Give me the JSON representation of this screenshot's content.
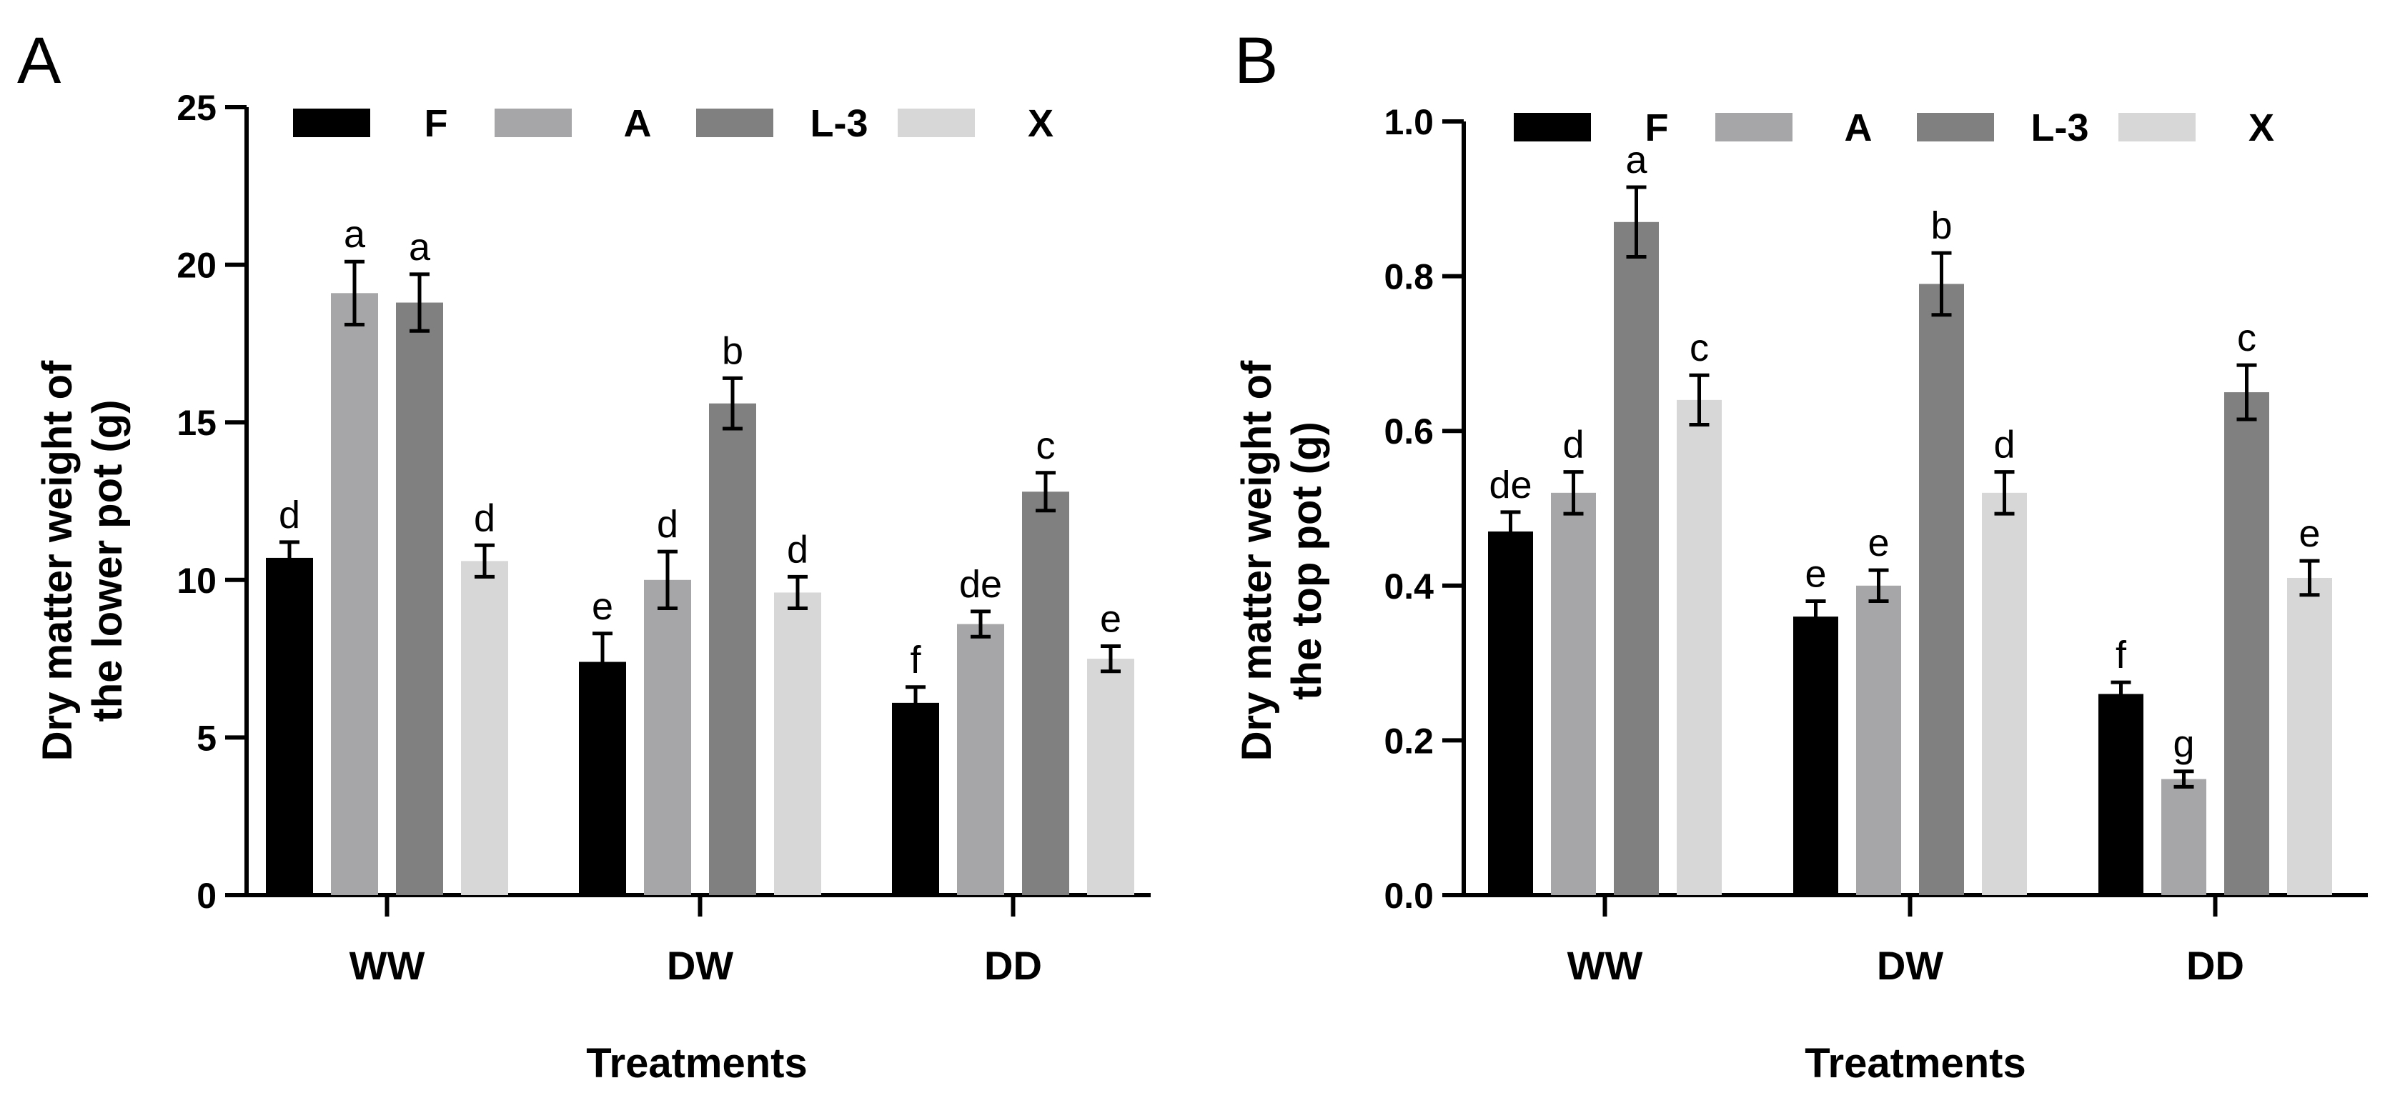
{
  "figure": {
    "description_domain": "Chart"
  },
  "colors": {
    "F": "#000000",
    "A": "#a6a6a8",
    "L-3": "#808080",
    "X": "#d7d7d7",
    "axis": "#000000"
  },
  "chart_data": [
    {
      "panel": "A",
      "type": "bar",
      "title": "",
      "xlabel": "Treatments",
      "ylabel_lines": [
        "Dry matter weight of",
        "the lower pot (g)"
      ],
      "categories": [
        "WW",
        "DW",
        "DD"
      ],
      "ylim": [
        0,
        25
      ],
      "yticks": [
        0,
        5,
        10,
        15,
        20,
        25
      ],
      "ytick_labels": [
        "0",
        "5",
        "10",
        "15",
        "20",
        "25"
      ],
      "legend": [
        "F",
        "A",
        "L-3",
        "X"
      ],
      "legend_position": "top",
      "series": [
        {
          "name": "F",
          "values": [
            10.7,
            7.4,
            6.1
          ],
          "errors": [
            0.5,
            0.9,
            0.5
          ],
          "labels": [
            "d",
            "e",
            "f"
          ]
        },
        {
          "name": "A",
          "values": [
            19.1,
            10.0,
            8.6
          ],
          "errors": [
            1.0,
            0.9,
            0.4
          ],
          "labels": [
            "a",
            "d",
            "de"
          ]
        },
        {
          "name": "L-3",
          "values": [
            18.8,
            15.6,
            12.8
          ],
          "errors": [
            0.9,
            0.8,
            0.6
          ],
          "labels": [
            "a",
            "b",
            "c"
          ]
        },
        {
          "name": "X",
          "values": [
            10.6,
            9.6,
            7.5
          ],
          "errors": [
            0.5,
            0.5,
            0.4
          ],
          "labels": [
            "d",
            "d",
            "e"
          ]
        }
      ]
    },
    {
      "panel": "B",
      "type": "bar",
      "title": "",
      "xlabel": "Treatments",
      "ylabel_lines": [
        "Dry matter weight of",
        "the top pot (g)"
      ],
      "categories": [
        "WW",
        "DW",
        "DD"
      ],
      "ylim": [
        0,
        1.0
      ],
      "yticks": [
        0,
        0.2,
        0.4,
        0.6,
        0.8,
        1.0
      ],
      "ytick_labels": [
        "0.0",
        "0.2",
        "0.4",
        "0.6",
        "0.8",
        "1.0"
      ],
      "legend": [
        "F",
        "A",
        "L-3",
        "X"
      ],
      "legend_position": "top",
      "series": [
        {
          "name": "F",
          "values": [
            0.47,
            0.36,
            0.26
          ],
          "errors": [
            0.025,
            0.02,
            0.015
          ],
          "labels": [
            "de",
            "e",
            "f"
          ]
        },
        {
          "name": "A",
          "values": [
            0.52,
            0.4,
            0.15
          ],
          "errors": [
            0.027,
            0.02,
            0.01
          ],
          "labels": [
            "d",
            "e",
            "g"
          ]
        },
        {
          "name": "L-3",
          "values": [
            0.87,
            0.79,
            0.65
          ],
          "errors": [
            0.045,
            0.04,
            0.035
          ],
          "labels": [
            "a",
            "b",
            "c"
          ]
        },
        {
          "name": "X",
          "values": [
            0.64,
            0.52,
            0.41
          ],
          "errors": [
            0.032,
            0.027,
            0.022
          ],
          "labels": [
            "c",
            "d",
            "e"
          ]
        }
      ]
    }
  ]
}
